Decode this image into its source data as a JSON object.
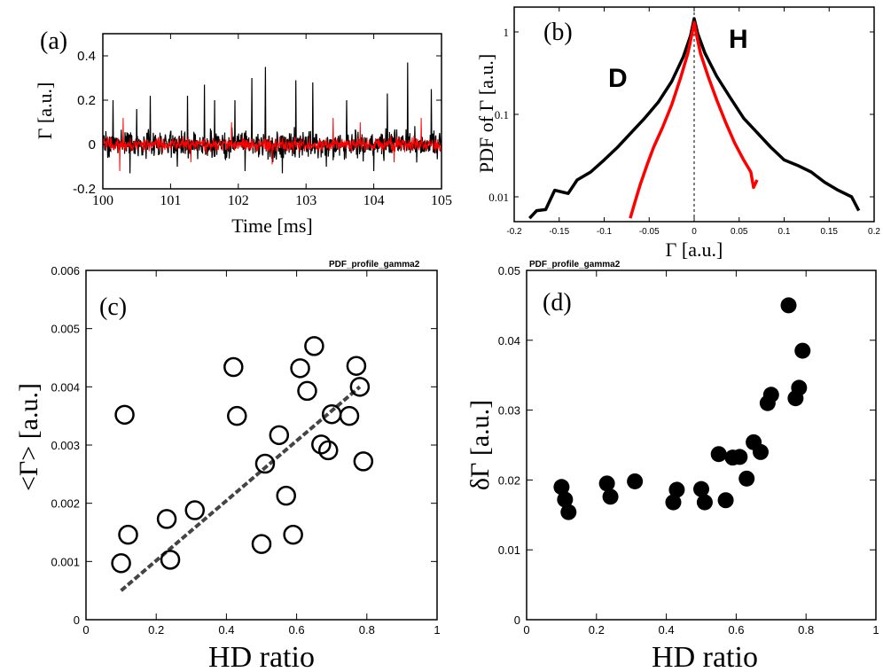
{
  "chart_data": [
    {
      "panel": "a",
      "type": "line",
      "panel_label": "(a)",
      "xlabel": "Time [ms]",
      "ylabel": "Γ [a.u.]",
      "xlim": [
        100,
        105
      ],
      "ylim": [
        -0.2,
        0.5
      ],
      "xticks": [
        "100",
        "101",
        "102",
        "103",
        "104",
        "105"
      ],
      "yticks": [
        "-0.2",
        "0",
        "0.2",
        "0.4"
      ],
      "series": [
        {
          "color": "#000000",
          "noise_amplitude": 0.06,
          "spikes": [
            [
              100.15,
              0.2
            ],
            [
              100.5,
              0.16
            ],
            [
              100.7,
              0.22
            ],
            [
              101.25,
              0.22
            ],
            [
              101.5,
              0.27
            ],
            [
              101.65,
              0.2
            ],
            [
              101.95,
              0.2
            ],
            [
              102.2,
              0.3
            ],
            [
              102.4,
              0.35
            ],
            [
              102.85,
              0.29
            ],
            [
              103.1,
              0.28
            ],
            [
              103.6,
              0.2
            ],
            [
              104.2,
              0.23
            ],
            [
              104.5,
              0.37
            ],
            [
              104.85,
              0.25
            ],
            [
              100.4,
              -0.13
            ],
            [
              101.1,
              -0.1
            ],
            [
              102.1,
              -0.12
            ],
            [
              102.65,
              -0.13
            ],
            [
              103.3,
              -0.1
            ],
            [
              104.0,
              -0.12
            ]
          ]
        },
        {
          "color": "#ff0000",
          "noise_amplitude": 0.03,
          "spikes": [
            [
              100.3,
              0.12
            ],
            [
              101.9,
              0.1
            ],
            [
              103.4,
              0.12
            ],
            [
              103.8,
              0.1
            ],
            [
              104.7,
              0.12
            ],
            [
              100.25,
              -0.12
            ],
            [
              101.3,
              -0.08
            ],
            [
              102.5,
              -0.09
            ],
            [
              104.3,
              -0.08
            ]
          ]
        }
      ]
    },
    {
      "panel": "b",
      "type": "line",
      "panel_label": "(b)",
      "xlabel": "Γ [a.u.]",
      "ylabel": "PDF of Γ [a.u.]",
      "xlim": [
        -0.2,
        0.2
      ],
      "ylim": [
        0.005,
        2
      ],
      "yscale": "log",
      "xticks": [
        "-0.2",
        "-0.15",
        "-0.1",
        "-0.05",
        "0",
        "0.05",
        "0.1",
        "0.15",
        "0.2"
      ],
      "yticks": [
        "0.01",
        "0.1",
        "1"
      ],
      "reference_line_x": 0,
      "annotations": [
        {
          "text": "D",
          "color": "#ff0000"
        },
        {
          "text": "H",
          "color": "#000000"
        }
      ],
      "series": [
        {
          "color": "#000000",
          "name": "H",
          "points": [
            [
              -0.183,
              0.0055
            ],
            [
              -0.175,
              0.0068
            ],
            [
              -0.165,
              0.007
            ],
            [
              -0.155,
              0.012
            ],
            [
              -0.14,
              0.011
            ],
            [
              -0.13,
              0.016
            ],
            [
              -0.115,
              0.02
            ],
            [
              -0.1,
              0.028
            ],
            [
              -0.085,
              0.04
            ],
            [
              -0.07,
              0.06
            ],
            [
              -0.055,
              0.09
            ],
            [
              -0.04,
              0.14
            ],
            [
              -0.025,
              0.25
            ],
            [
              -0.012,
              0.5
            ],
            [
              -0.004,
              0.9
            ],
            [
              0,
              1.45
            ],
            [
              0.004,
              0.95
            ],
            [
              0.012,
              0.55
            ],
            [
              0.025,
              0.29
            ],
            [
              0.04,
              0.16
            ],
            [
              0.055,
              0.09
            ],
            [
              0.07,
              0.06
            ],
            [
              0.085,
              0.04
            ],
            [
              0.1,
              0.028
            ],
            [
              0.115,
              0.024
            ],
            [
              0.13,
              0.02
            ],
            [
              0.145,
              0.015
            ],
            [
              0.16,
              0.012
            ],
            [
              0.175,
              0.01
            ],
            [
              0.183,
              0.0068
            ]
          ]
        },
        {
          "color": "#ff0000",
          "name": "D",
          "points": [
            [
              -0.071,
              0.0055
            ],
            [
              -0.066,
              0.0085
            ],
            [
              -0.06,
              0.014
            ],
            [
              -0.052,
              0.025
            ],
            [
              -0.045,
              0.04
            ],
            [
              -0.035,
              0.07
            ],
            [
              -0.025,
              0.13
            ],
            [
              -0.015,
              0.28
            ],
            [
              -0.007,
              0.55
            ],
            [
              -0.002,
              1.0
            ],
            [
              0,
              1.3
            ],
            [
              0.002,
              1.0
            ],
            [
              0.007,
              0.55
            ],
            [
              0.015,
              0.3
            ],
            [
              0.025,
              0.15
            ],
            [
              0.035,
              0.08
            ],
            [
              0.045,
              0.045
            ],
            [
              0.055,
              0.028
            ],
            [
              0.063,
              0.02
            ],
            [
              0.066,
              0.013
            ],
            [
              0.07,
              0.016
            ]
          ]
        }
      ]
    },
    {
      "panel": "c",
      "type": "scatter",
      "panel_label": "(c)",
      "header": "PDF_profile_gamma2",
      "xlabel": "HD ratio",
      "ylabel": "<Γ> [a.u.]",
      "xlim": [
        0,
        1
      ],
      "ylim": [
        0,
        0.006
      ],
      "xticks": [
        "0",
        "0.2",
        "0.4",
        "0.6",
        "0.8",
        "1"
      ],
      "yticks": [
        "0",
        "0.001",
        "0.002",
        "0.003",
        "0.004",
        "0.005",
        "0.006"
      ],
      "marker": "open-circle",
      "points": [
        [
          0.1,
          0.00097
        ],
        [
          0.11,
          0.00352
        ],
        [
          0.12,
          0.00146
        ],
        [
          0.23,
          0.00173
        ],
        [
          0.24,
          0.00103
        ],
        [
          0.31,
          0.00188
        ],
        [
          0.42,
          0.00434
        ],
        [
          0.43,
          0.0035
        ],
        [
          0.5,
          0.0013
        ],
        [
          0.51,
          0.00268
        ],
        [
          0.55,
          0.00317
        ],
        [
          0.57,
          0.00213
        ],
        [
          0.59,
          0.00146
        ],
        [
          0.61,
          0.00432
        ],
        [
          0.63,
          0.00393
        ],
        [
          0.65,
          0.0047
        ],
        [
          0.67,
          0.00301
        ],
        [
          0.69,
          0.00291
        ],
        [
          0.7,
          0.00353
        ],
        [
          0.75,
          0.0035
        ],
        [
          0.77,
          0.00436
        ],
        [
          0.78,
          0.004
        ],
        [
          0.79,
          0.00272
        ]
      ],
      "fit_line": [
        [
          0.1,
          0.0005
        ],
        [
          0.78,
          0.004
        ]
      ]
    },
    {
      "panel": "d",
      "type": "scatter",
      "panel_label": "(d)",
      "header": "PDF_profile_gamma2",
      "xlabel": "HD ratio",
      "ylabel": "δΓ [a.u.]",
      "xlim": [
        0,
        1
      ],
      "ylim": [
        0,
        0.05
      ],
      "xticks": [
        "0",
        "0.2",
        "0.4",
        "0.6",
        "0.8",
        "1"
      ],
      "yticks": [
        "0",
        "0.01",
        "0.02",
        "0.03",
        "0.04",
        "0.05"
      ],
      "marker": "filled-circle",
      "points": [
        [
          0.1,
          0.019
        ],
        [
          0.11,
          0.0172
        ],
        [
          0.12,
          0.0154
        ],
        [
          0.23,
          0.0195
        ],
        [
          0.24,
          0.0176
        ],
        [
          0.31,
          0.0198
        ],
        [
          0.42,
          0.0168
        ],
        [
          0.43,
          0.0186
        ],
        [
          0.5,
          0.0187
        ],
        [
          0.51,
          0.0168
        ],
        [
          0.55,
          0.0237
        ],
        [
          0.57,
          0.0171
        ],
        [
          0.59,
          0.0232
        ],
        [
          0.61,
          0.0233
        ],
        [
          0.63,
          0.0202
        ],
        [
          0.65,
          0.0254
        ],
        [
          0.67,
          0.024
        ],
        [
          0.69,
          0.031
        ],
        [
          0.7,
          0.0322
        ],
        [
          0.75,
          0.045
        ],
        [
          0.77,
          0.0317
        ],
        [
          0.78,
          0.0332
        ],
        [
          0.79,
          0.0385
        ]
      ]
    }
  ]
}
